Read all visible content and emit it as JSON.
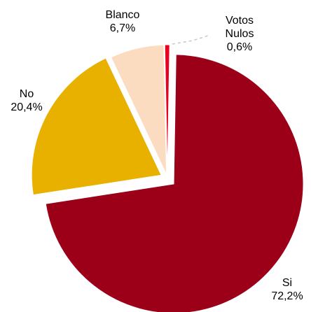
{
  "chart_data": {
    "type": "pie",
    "slices": [
      {
        "label": "Si",
        "value": 72.2,
        "value_label": "72,2%",
        "color": "#9b0018"
      },
      {
        "label": "No",
        "value": 20.4,
        "value_label": "20,4%",
        "color": "#e8b100"
      },
      {
        "label": "Blanco",
        "value": 6.7,
        "value_label": "6,7%",
        "color": "#fbdcc0"
      },
      {
        "label": "Votos Nulos",
        "label_lines": [
          "Votos",
          "Nulos"
        ],
        "value": 0.6,
        "value_label": "0,6%",
        "color": "#e8001e"
      }
    ],
    "exploded": true,
    "legend": "none",
    "title": ""
  }
}
